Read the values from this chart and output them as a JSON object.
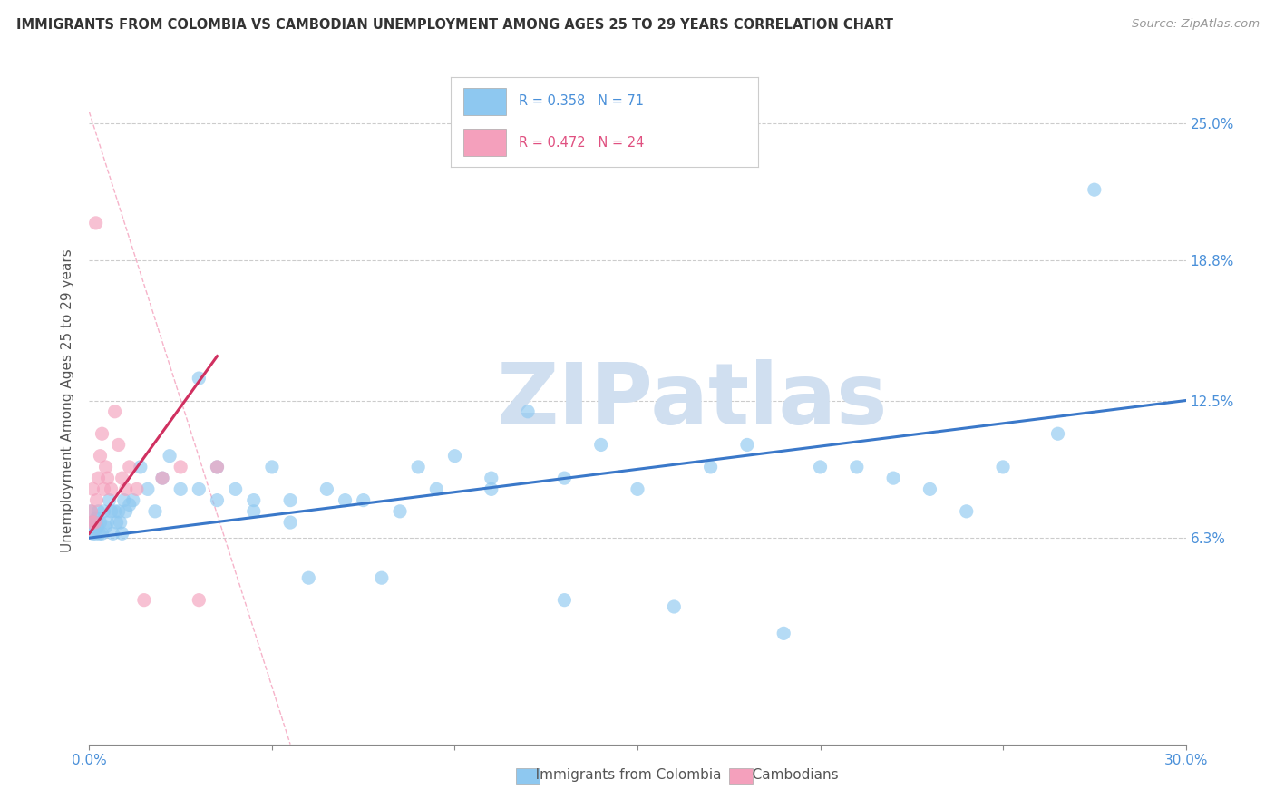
{
  "title": "IMMIGRANTS FROM COLOMBIA VS CAMBODIAN UNEMPLOYMENT AMONG AGES 25 TO 29 YEARS CORRELATION CHART",
  "source": "Source: ZipAtlas.com",
  "ylabel": "Unemployment Among Ages 25 to 29 years",
  "y_tick_values": [
    6.3,
    12.5,
    18.8,
    25.0
  ],
  "y_tick_labels": [
    "6.3%",
    "12.5%",
    "18.8%",
    "25.0%"
  ],
  "x_tick_labels": [
    "0.0%",
    "30.0%"
  ],
  "x_tick_values": [
    0.0,
    30.0
  ],
  "xlim": [
    0.0,
    30.0
  ],
  "ylim": [
    -3.0,
    28.0
  ],
  "watermark_text": "ZIPatlas",
  "watermark_color": "#d0dff0",
  "colombia_color": "#8ec8f0",
  "cambodian_color": "#f4a0bc",
  "colombia_trend_color": "#3a78c9",
  "cambodian_trend_color": "#d03060",
  "diag_color": "#f4a0bc",
  "legend_colombia_label": "R = 0.358   N = 71",
  "legend_cambodian_label": "R = 0.472   N = 24",
  "legend_text_color_colombia": "#4a90d9",
  "legend_text_color_cambodian": "#e05080",
  "bottom_legend_colombia": "Immigrants from Colombia",
  "bottom_legend_cambodian": "Cambodians",
  "colombia_x": [
    0.05,
    0.08,
    0.1,
    0.12,
    0.15,
    0.18,
    0.2,
    0.22,
    0.25,
    0.28,
    0.3,
    0.35,
    0.4,
    0.45,
    0.5,
    0.55,
    0.6,
    0.65,
    0.7,
    0.75,
    0.8,
    0.85,
    0.9,
    0.95,
    1.0,
    1.1,
    1.2,
    1.4,
    1.6,
    1.8,
    2.0,
    2.2,
    2.5,
    3.0,
    3.5,
    4.0,
    4.5,
    5.0,
    5.5,
    6.0,
    7.0,
    8.0,
    9.0,
    10.0,
    11.0,
    12.0,
    13.0,
    14.0,
    15.0,
    16.0,
    17.0,
    18.0,
    19.0,
    20.0,
    21.0,
    22.0,
    23.0,
    24.0,
    25.0,
    26.5,
    3.0,
    3.5,
    4.5,
    5.5,
    6.5,
    7.5,
    8.5,
    9.5,
    11.0,
    13.0,
    27.5
  ],
  "colombia_y": [
    7.5,
    7.0,
    6.5,
    6.8,
    7.0,
    6.5,
    7.2,
    6.8,
    7.5,
    6.5,
    7.0,
    6.5,
    7.5,
    6.8,
    7.0,
    8.0,
    7.5,
    6.5,
    7.5,
    7.0,
    7.5,
    7.0,
    6.5,
    8.0,
    7.5,
    7.8,
    8.0,
    9.5,
    8.5,
    7.5,
    9.0,
    10.0,
    8.5,
    13.5,
    9.5,
    8.5,
    8.0,
    9.5,
    7.0,
    4.5,
    8.0,
    4.5,
    9.5,
    10.0,
    9.0,
    12.0,
    3.5,
    10.5,
    8.5,
    3.2,
    9.5,
    10.5,
    2.0,
    9.5,
    9.5,
    9.0,
    8.5,
    7.5,
    9.5,
    11.0,
    8.5,
    8.0,
    7.5,
    8.0,
    8.5,
    8.0,
    7.5,
    8.5,
    8.5,
    9.0,
    22.0
  ],
  "cambodian_x": [
    0.05,
    0.08,
    0.1,
    0.15,
    0.2,
    0.25,
    0.3,
    0.35,
    0.4,
    0.45,
    0.5,
    0.6,
    0.7,
    0.8,
    0.9,
    1.0,
    1.1,
    1.3,
    1.5,
    2.0,
    2.5,
    3.0,
    3.5,
    0.18
  ],
  "cambodian_y": [
    7.5,
    7.0,
    8.5,
    7.0,
    8.0,
    9.0,
    10.0,
    11.0,
    8.5,
    9.5,
    9.0,
    8.5,
    12.0,
    10.5,
    9.0,
    8.5,
    9.5,
    8.5,
    3.5,
    9.0,
    9.5,
    3.5,
    9.5,
    20.5
  ]
}
